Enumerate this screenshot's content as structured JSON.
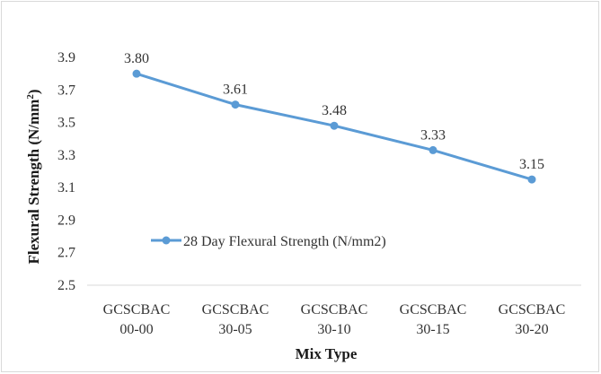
{
  "chart_data": {
    "type": "line",
    "categories": [
      [
        "GCSCBAC",
        "00-00"
      ],
      [
        "GCSCBAC",
        "30-05"
      ],
      [
        "GCSCBAC",
        "30-10"
      ],
      [
        "GCSCBAC",
        "30-15"
      ],
      [
        "GCSCBAC",
        "30-20"
      ]
    ],
    "series": [
      {
        "name": "28 Day Flexural Strength (N/mm2)",
        "values": [
          3.8,
          3.61,
          3.48,
          3.33,
          3.15
        ],
        "data_labels": [
          "3.80",
          "3.61",
          "3.48",
          "3.33",
          "3.15"
        ],
        "color": "#5b9bd5"
      }
    ],
    "xlabel": "Mix Type",
    "ylabel": "Flexural Strength (N/mm",
    "ylabel_superscript": "2",
    "ylabel_suffix": ")",
    "ylim": [
      2.5,
      3.9
    ],
    "yticks": [
      2.5,
      2.7,
      2.9,
      3.1,
      3.3,
      3.5,
      3.7,
      3.9
    ],
    "ytick_labels": [
      "2.5",
      "2.7",
      "2.9",
      "3.1",
      "3.3",
      "3.5",
      "3.7",
      "3.9"
    ],
    "grid": false,
    "legend_position": "inside-left"
  }
}
